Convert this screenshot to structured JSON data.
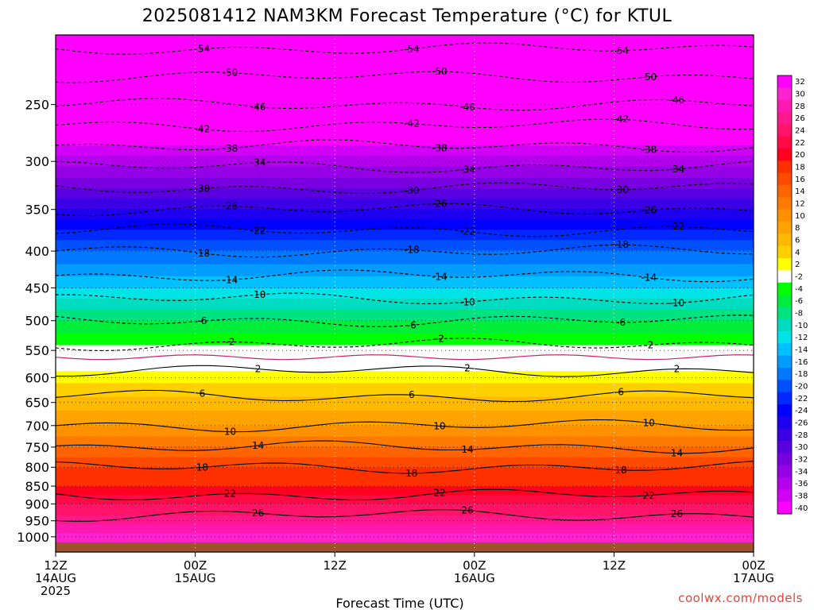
{
  "chart_data": {
    "type": "heatmap",
    "title": "2025081412 NAM3KM Forecast Temperature (°C) for KTUL",
    "xlabel": "Forecast Time (UTC)",
    "ylabel": "",
    "x_ticks": [
      {
        "top": "12Z",
        "mid": "14AUG",
        "bottom": "2025"
      },
      {
        "top": "00Z",
        "mid": "15AUG",
        "bottom": ""
      },
      {
        "top": "12Z",
        "mid": "",
        "bottom": ""
      },
      {
        "top": "00Z",
        "mid": "16AUG",
        "bottom": ""
      },
      {
        "top": "12Z",
        "mid": "",
        "bottom": ""
      },
      {
        "top": "00Z",
        "mid": "17AUG",
        "bottom": ""
      }
    ],
    "x_hours": [
      0,
      12,
      24,
      36,
      48,
      60
    ],
    "xlim_hours": [
      0,
      60
    ],
    "y_ticks": [
      250,
      300,
      350,
      400,
      450,
      500,
      550,
      600,
      650,
      700,
      750,
      800,
      850,
      900,
      950,
      1000
    ],
    "ylim_hpa": [
      200,
      1050
    ],
    "ground_below_hpa": 1000,
    "grid": true,
    "colorbar_labels": [
      "32",
      "30",
      "28",
      "26",
      "24",
      "22",
      "20",
      "18",
      "16",
      "14",
      "12",
      "10",
      "8",
      "6",
      "4",
      "2",
      "-2",
      "-4",
      "-6",
      "-8",
      "-10",
      "-12",
      "-14",
      "-16",
      "-18",
      "-20",
      "-22",
      "-24",
      "-26",
      "-28",
      "-30",
      "-32",
      "-34",
      "-36",
      "-38",
      "-40"
    ],
    "colorbar_colors": [
      "#ff00ff",
      "#ff22d0",
      "#ff19b0",
      "#ff178e",
      "#ff1469",
      "#ff0a45",
      "#ff0020",
      "#ff3000",
      "#ff4b00",
      "#ff6400",
      "#ff7a00",
      "#ff9100",
      "#ffa300",
      "#ffb900",
      "#ffd000",
      "#ffff00",
      "#ffffff",
      "#00ff00",
      "#00ee3a",
      "#00e380",
      "#00dcc0",
      "#00e4e8",
      "#00c0ff",
      "#009cff",
      "#0078ff",
      "#0050ff",
      "#0028ff",
      "#0000ff",
      "#1e00f0",
      "#3c00e6",
      "#5a00e0",
      "#7800e0",
      "#9600e6",
      "#b400ee",
      "#d200f6",
      "#ff00ff"
    ],
    "contour_levels_dashed": [
      -54,
      -50,
      -46,
      -42,
      -38,
      -34,
      -30,
      -26,
      -22,
      -18,
      -14,
      -10,
      -6,
      -2
    ],
    "contour_levels_solid": [
      2,
      6,
      10,
      14,
      18,
      22,
      26
    ],
    "profile_hpa": [
      200,
      250,
      300,
      350,
      400,
      450,
      500,
      550,
      600,
      650,
      700,
      750,
      800,
      850,
      900,
      950,
      1000
    ],
    "profile_temp": [
      -56,
      -46,
      -35,
      -26,
      -18,
      -12,
      -6,
      -1,
      3,
      7,
      10,
      14,
      18,
      20,
      24,
      27,
      31
    ],
    "annotation": "coolwx.com/models"
  }
}
